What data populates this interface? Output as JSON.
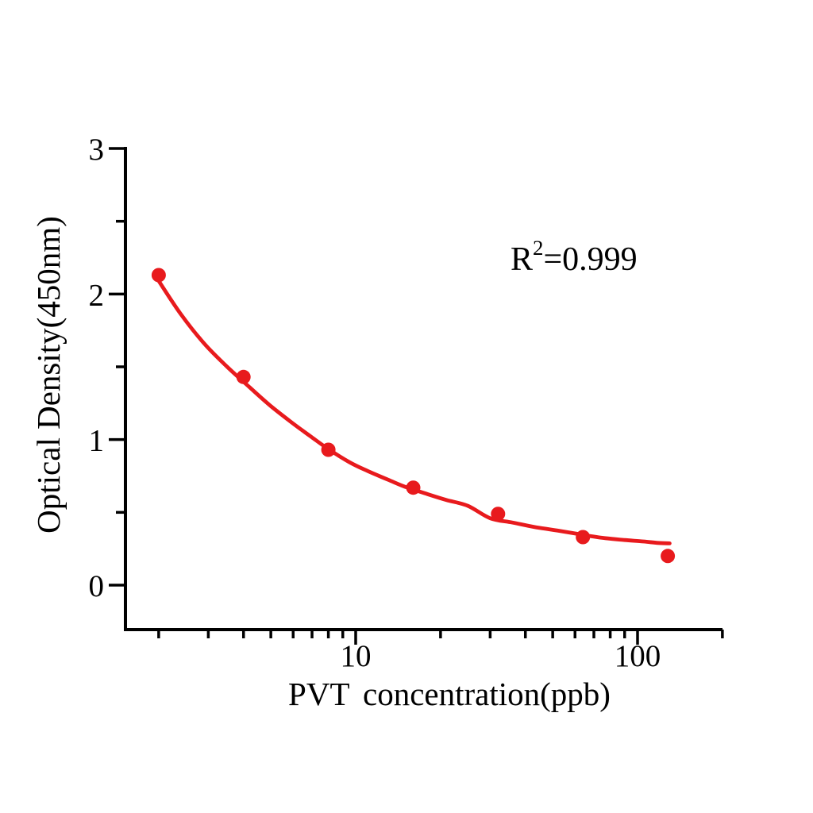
{
  "page": {
    "background": "#ffffff"
  },
  "chart_data": {
    "type": "scatter",
    "title": "",
    "xlabel": "PVT concentration(ppb)",
    "ylabel": "Optical Density(450nm)",
    "annotation": {
      "base": "R",
      "sup": "2",
      "rest": "=0.999"
    },
    "x_scale": "log",
    "y_scale": "linear",
    "x": [
      2,
      4,
      8,
      16,
      32,
      64,
      128
    ],
    "y": [
      2.13,
      1.43,
      0.93,
      0.67,
      0.49,
      0.33,
      0.2
    ],
    "fit": {
      "r_squared": "0.999",
      "samples": [
        [
          2,
          2.09
        ],
        [
          2.4,
          1.86
        ],
        [
          2.9,
          1.66
        ],
        [
          3.5,
          1.5
        ],
        [
          4.2,
          1.36
        ],
        [
          5,
          1.23
        ],
        [
          6,
          1.11
        ],
        [
          7,
          1.015
        ],
        [
          8,
          0.935
        ],
        [
          9.5,
          0.845
        ],
        [
          11,
          0.785
        ],
        [
          13,
          0.725
        ],
        [
          15,
          0.675
        ],
        [
          18,
          0.625
        ],
        [
          21,
          0.585
        ],
        [
          25,
          0.545
        ],
        [
          30,
          0.46
        ],
        [
          36,
          0.43
        ],
        [
          43,
          0.4
        ],
        [
          52,
          0.375
        ],
        [
          62,
          0.35
        ],
        [
          75,
          0.325
        ],
        [
          90,
          0.31
        ],
        [
          105,
          0.3
        ],
        [
          118,
          0.29
        ],
        [
          130,
          0.287
        ]
      ]
    },
    "axes": {
      "xlim": [
        1.52,
        200
      ],
      "ylim": [
        -0.31,
        3.31
      ],
      "x_major_ticks": [
        10,
        100
      ],
      "x_major_labels": [
        "10",
        "100"
      ],
      "x_minor_ticks": [
        2,
        3,
        4,
        5,
        6,
        7,
        8,
        9,
        20,
        30,
        40,
        50,
        60,
        70,
        80,
        90,
        200
      ],
      "y_major_ticks": [
        0,
        1,
        2,
        3
      ],
      "y_major_labels": [
        "0",
        "1",
        "2",
        "3"
      ],
      "y_minor_ticks": [
        0.5,
        1.5,
        2.5
      ],
      "grid": "off",
      "legend": "none"
    },
    "colors": {
      "points": "#e81a1d",
      "fit_line": "#e81a1d",
      "axis": "#000000",
      "background": "#ffffff"
    }
  }
}
